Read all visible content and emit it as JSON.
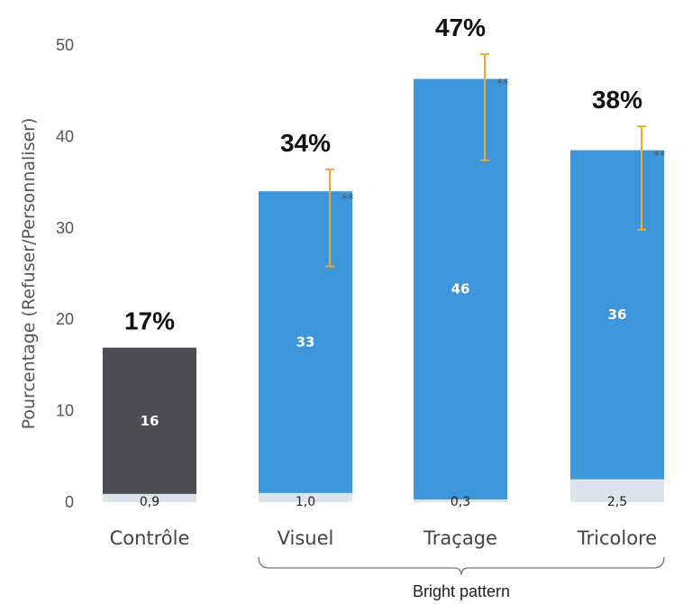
{
  "chart_data": {
    "type": "bar",
    "stacked": true,
    "ylabel": "Pourcentage (Refuser/Personnaliser)",
    "ylim": [
      0,
      50
    ],
    "yticks": [
      0,
      10,
      20,
      30,
      40,
      50
    ],
    "grid": false,
    "categories": [
      "Contrôle",
      "Visuel",
      "Traçage",
      "Tricolore"
    ],
    "series": [
      {
        "role": "base",
        "values": [
          0.9,
          1.0,
          0.3,
          2.5
        ],
        "labels": [
          "0,9",
          "1,0",
          "0,3",
          "2,5"
        ],
        "color": "#dde3ea"
      },
      {
        "role": "main",
        "values": [
          16,
          33,
          46,
          36
        ],
        "labels": [
          "16",
          "33",
          "46",
          "36"
        ],
        "colors": [
          "#4b4d50",
          "#3d96d9",
          "#3d96d9",
          "#3d96d9"
        ]
      }
    ],
    "totals": [
      "17%",
      "34%",
      "47%",
      "38%"
    ],
    "error_bars": [
      null,
      [
        25.8,
        36.4
      ],
      [
        37.4,
        49.0
      ],
      [
        29.8,
        41.1
      ]
    ],
    "error_color": "#f0a830",
    "significance": [
      "",
      "**",
      "**",
      "**"
    ],
    "group_bracket": {
      "label": "Bright pattern",
      "from": 1,
      "to": 3
    }
  }
}
